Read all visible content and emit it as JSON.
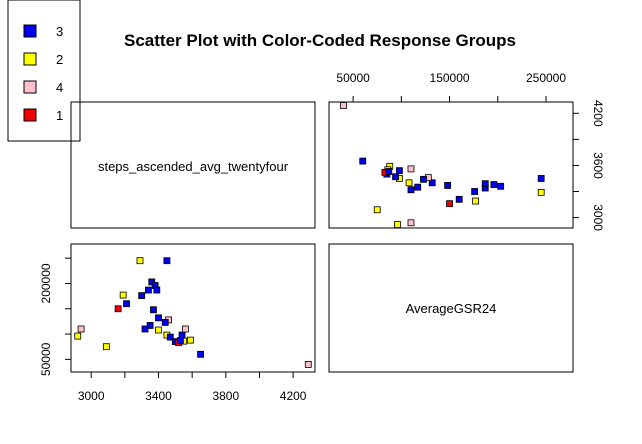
{
  "chart_data": {
    "type": "scatter",
    "subtype": "pairs-matrix",
    "title": "Scatter Plot with Color-Coded Response Groups",
    "variables": [
      "steps_ascended_avg_twentyfour",
      "AverageGSR24"
    ],
    "legend": {
      "placement": "top-left",
      "entries": [
        {
          "label": "3",
          "color": "#0000ee"
        },
        {
          "label": "2",
          "color": "#ffff00"
        },
        {
          "label": "4",
          "color": "#ffc0cb"
        },
        {
          "label": "1",
          "color": "#ee0000"
        }
      ]
    },
    "axes": {
      "steps": {
        "range": [
          2880,
          4330
        ],
        "ticks": [
          3000,
          3400,
          3800,
          4200
        ]
      },
      "gsr": {
        "range": [
          25000,
          278000
        ],
        "ticks": [
          50000,
          150000,
          250000
        ],
        "minor_ticks": [
          100000,
          200000
        ],
        "left_ticks": [
          50000,
          200000
        ]
      },
      "steps_right": {
        "ticks": [
          3000,
          3600,
          4200
        ],
        "minor_ticks": [
          3300,
          3900
        ]
      }
    },
    "grid": false,
    "points": [
      {
        "steps": 4290,
        "gsr": 40000,
        "group": "4"
      },
      {
        "steps": 3290,
        "gsr": 245000,
        "group": "2"
      },
      {
        "steps": 3450,
        "gsr": 245000,
        "group": "3"
      },
      {
        "steps": 3360,
        "gsr": 203000,
        "group": "3"
      },
      {
        "steps": 3380,
        "gsr": 196000,
        "group": "3"
      },
      {
        "steps": 3340,
        "gsr": 187000,
        "group": "3"
      },
      {
        "steps": 3390,
        "gsr": 187000,
        "group": "3"
      },
      {
        "steps": 3300,
        "gsr": 176000,
        "group": "3"
      },
      {
        "steps": 3190,
        "gsr": 177000,
        "group": "2"
      },
      {
        "steps": 3210,
        "gsr": 160000,
        "group": "3"
      },
      {
        "steps": 3160,
        "gsr": 150000,
        "group": "1"
      },
      {
        "steps": 3370,
        "gsr": 148000,
        "group": "3"
      },
      {
        "steps": 3400,
        "gsr": 132000,
        "group": "3"
      },
      {
        "steps": 3460,
        "gsr": 128000,
        "group": "4"
      },
      {
        "steps": 3440,
        "gsr": 123000,
        "group": "3"
      },
      {
        "steps": 3350,
        "gsr": 117000,
        "group": "3"
      },
      {
        "steps": 3320,
        "gsr": 110000,
        "group": "3"
      },
      {
        "steps": 3400,
        "gsr": 108000,
        "group": "2"
      },
      {
        "steps": 3450,
        "gsr": 98000,
        "group": "2"
      },
      {
        "steps": 3470,
        "gsr": 94000,
        "group": "3"
      },
      {
        "steps": 3540,
        "gsr": 98000,
        "group": "3"
      },
      {
        "steps": 3560,
        "gsr": 110000,
        "group": "4"
      },
      {
        "steps": 3590,
        "gsr": 88000,
        "group": "2"
      },
      {
        "steps": 3550,
        "gsr": 86000,
        "group": "2"
      },
      {
        "steps": 3500,
        "gsr": 85000,
        "group": "3"
      },
      {
        "steps": 3520,
        "gsr": 83000,
        "group": "1"
      },
      {
        "steps": 3530,
        "gsr": 87000,
        "group": "3"
      },
      {
        "steps": 3650,
        "gsr": 60000,
        "group": "3"
      },
      {
        "steps": 2940,
        "gsr": 110000,
        "group": "4"
      },
      {
        "steps": 2920,
        "gsr": 96000,
        "group": "2"
      },
      {
        "steps": 3090,
        "gsr": 75000,
        "group": "2"
      }
    ]
  }
}
